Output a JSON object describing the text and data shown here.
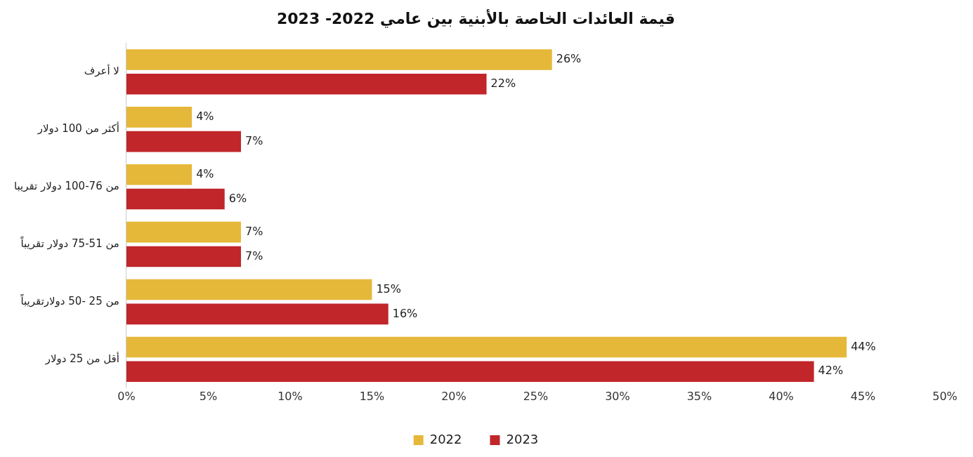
{
  "chart_data": {
    "type": "bar",
    "orientation": "horizontal",
    "title": "قيمة العائدات الخاصة بالأبنية بين عامي 2022- 2023",
    "categories": [
      "لا أعرف",
      "أكثر من 100 دولار",
      "من 76-100 دولار تقريبا",
      "من 51-75 دولار تقريباً",
      "من 25 -50 دولارتقريباً",
      "أقل من 25 دولار"
    ],
    "series": [
      {
        "name": "2022",
        "color": "#e6b83a",
        "values": [
          26,
          4,
          4,
          7,
          15,
          44
        ],
        "value_labels": [
          "26%",
          "4%",
          "4%",
          "7%",
          "15%",
          "44%"
        ]
      },
      {
        "name": "2023",
        "color": "#c0262a",
        "values": [
          22,
          7,
          6,
          7,
          16,
          42
        ],
        "value_labels": [
          "22%",
          "7%",
          "6%",
          "7%",
          "16%",
          "42%"
        ]
      }
    ],
    "xlim": [
      0,
      50
    ],
    "xticks": [
      {
        "value": 0,
        "label": "0%"
      },
      {
        "value": 5,
        "label": "5%"
      },
      {
        "value": 10,
        "label": "10%"
      },
      {
        "value": 15,
        "label": "15%"
      },
      {
        "value": 20,
        "label": "20%"
      },
      {
        "value": 25,
        "label": "25%"
      },
      {
        "value": 30,
        "label": "30%"
      },
      {
        "value": 35,
        "label": "35%"
      },
      {
        "value": 40,
        "label": "40%"
      },
      {
        "value": 45,
        "label": "45%"
      },
      {
        "value": 50,
        "label": "50%"
      }
    ],
    "grid": false,
    "legend": "bottom"
  }
}
